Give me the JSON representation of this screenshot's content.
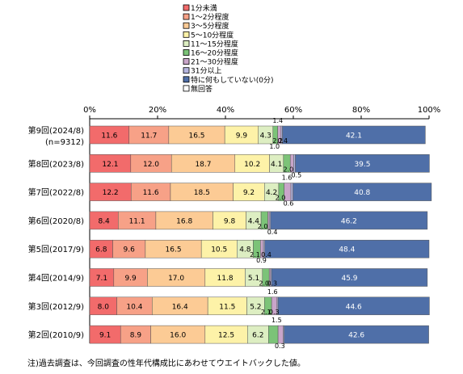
{
  "note": "注)過去調査は、今回調査の性年代構成比にあわせてウエイトバックした値。",
  "chart_data": {
    "type": "bar",
    "stacked": true,
    "orientation": "horizontal",
    "xlim": [
      0,
      100
    ],
    "x_tick_labels": [
      "0%",
      "20%",
      "40%",
      "60%",
      "80%",
      "100%"
    ],
    "legend_position": "top",
    "categories": [
      [
        "第9回(2024/8)",
        "(n=9312)"
      ],
      [
        "第8回(2023/8)"
      ],
      [
        "第7回(2022/8)"
      ],
      [
        "第6回(2020/8)"
      ],
      [
        "第5回(2017/9)"
      ],
      [
        "第4回(2014/9)"
      ],
      [
        "第3回(2012/9)"
      ],
      [
        "第2回(2010/9)"
      ]
    ],
    "series": [
      {
        "name": "1分未満",
        "color": "#f26b6b",
        "values": [
          11.6,
          12.1,
          12.2,
          8.4,
          6.8,
          7.1,
          8.0,
          9.1
        ]
      },
      {
        "name": "1〜2分程度",
        "color": "#f7a187",
        "values": [
          11.7,
          12.0,
          11.6,
          11.1,
          9.6,
          9.9,
          10.4,
          8.9
        ]
      },
      {
        "name": "3〜5分程度",
        "color": "#fccb95",
        "values": [
          16.5,
          18.7,
          18.5,
          16.8,
          16.5,
          17.0,
          16.4,
          16.0
        ]
      },
      {
        "name": "5〜10分程度",
        "color": "#fdf2a8",
        "values": [
          9.9,
          10.2,
          9.2,
          9.8,
          10.5,
          11.8,
          11.5,
          12.5
        ]
      },
      {
        "name": "11〜15分程度",
        "color": "#ddeec2",
        "values": [
          4.3,
          4.1,
          4.2,
          4.4,
          4.8,
          5.1,
          5.2,
          6.2
        ]
      },
      {
        "name": "16〜20分程度",
        "color": "#7cc378",
        "values": [
          1.4,
          2.0,
          1.6,
          2.0,
          2.1,
          2.0,
          2.1,
          2.8
        ]
      },
      {
        "name": "21〜30分程度",
        "color": "#c9a5c9",
        "values": [
          1.0,
          1.0,
          2.0,
          0.4,
          0.9,
          0.4,
          1.6,
          1.5
        ]
      },
      {
        "name": "31分以上",
        "color": "#b4b4de",
        "values": [
          0.4,
          0.5,
          0.6,
          0.4,
          0.4,
          0.3,
          0.3,
          0.3
        ]
      },
      {
        "name": "特に何もしていない(0分)",
        "color": "#4f6fa8",
        "values": [
          42.1,
          39.5,
          40.8,
          46.2,
          48.4,
          45.9,
          44.6,
          42.6
        ]
      },
      {
        "name": "無回答",
        "color": "#ffffff",
        "values": [
          0,
          0,
          0,
          0,
          0,
          0,
          0,
          0
        ]
      }
    ],
    "small_labels": [
      [
        {
          "text": "1.4",
          "dx": 0,
          "dy": -4
        },
        {
          "text": "2.2",
          "dx": 0,
          "dy": 15
        },
        {
          "text": "1.0",
          "dx": -4,
          "dy": 22
        },
        {
          "text": "0.4",
          "dx": 6,
          "dy": 15
        }
      ],
      [
        {
          "text": "2.0",
          "dx": 0,
          "dy": 15
        },
        {
          "text": "0.5",
          "dx": 10,
          "dy": 22
        }
      ],
      [
        {
          "text": "1.6",
          "dx": 4,
          "dy": -4
        },
        {
          "text": "2.0",
          "dx": -4,
          "dy": 15
        },
        {
          "text": "0.6",
          "dx": 6,
          "dy": 22
        }
      ],
      [
        {
          "text": "2.0",
          "dx": -4,
          "dy": 15
        },
        {
          "text": "0.4",
          "dx": 8,
          "dy": 22
        }
      ],
      [
        {
          "text": "2.1",
          "dx": -4,
          "dy": 15
        },
        {
          "text": "0.9",
          "dx": 4,
          "dy": 22
        },
        {
          "text": "0.4",
          "dx": 10,
          "dy": 15
        }
      ],
      [
        {
          "text": "2.0",
          "dx": -4,
          "dy": 15
        },
        {
          "text": "0.3",
          "dx": 6,
          "dy": 15
        }
      ],
      [
        {
          "text": "2.1",
          "dx": -4,
          "dy": 15
        },
        {
          "text": "1.6",
          "dx": 4,
          "dy": -4
        },
        {
          "text": "0.3",
          "dx": 6,
          "dy": 15
        }
      ],
      [
        {
          "text": "1.5",
          "dx": 4,
          "dy": -4
        },
        {
          "text": "0.3",
          "dx": 8,
          "dy": 22
        }
      ]
    ]
  }
}
